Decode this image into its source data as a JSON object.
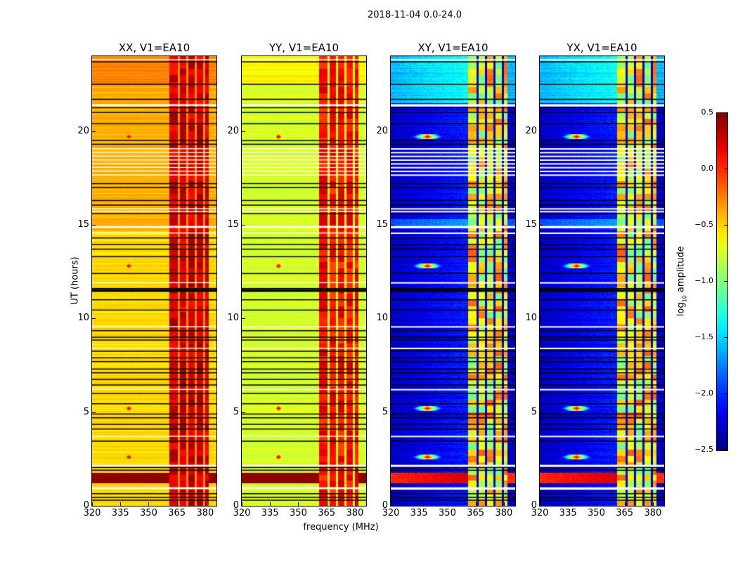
{
  "chart_data": {
    "type": "heatmap",
    "title": "2018-11-04 0.0-24.0",
    "xlabel": "frequency (MHz)",
    "ylabel": "UT (hours)",
    "xlim": [
      320,
      386
    ],
    "ylim": [
      0,
      24
    ],
    "xticks": [
      "320",
      "335",
      "350",
      "365",
      "380"
    ],
    "xtick_values": [
      320,
      335,
      350,
      365,
      380
    ],
    "yticks": [
      "0",
      "5",
      "10",
      "15",
      "20"
    ],
    "ytick_values": [
      0,
      5,
      10,
      15,
      20
    ],
    "panels": [
      {
        "title": "XX, V1=EA10",
        "pol": "XX",
        "base_level": -0.4,
        "rfi_level": 0.25
      },
      {
        "title": "YY, V1=EA10",
        "pol": "YY",
        "base_level": -0.75,
        "rfi_level": 0.1
      },
      {
        "title": "XY, V1=EA10",
        "pol": "XY",
        "base_level": -2.3,
        "rfi_level": -0.6
      },
      {
        "title": "YX, V1=EA10",
        "pol": "YX",
        "base_level": -2.3,
        "rfi_level": -0.6
      }
    ],
    "rfi_band_mhz": [
      361,
      382
    ],
    "rfi_band_gaps_mhz": [
      366,
      370.5,
      375,
      379.5
    ],
    "point_sources": {
      "freq_mhz": 339.5,
      "ut_hours": [
        19.7,
        12.8,
        5.2,
        2.6
      ]
    },
    "flagged_black_ut_hours": [
      23.7,
      22.5,
      21.7,
      21.25,
      21.0,
      20.4,
      19.5,
      19.3,
      17.2,
      17.0,
      16.3,
      16.05,
      15.6,
      14.3,
      13.95,
      13.7,
      13.3,
      12.4,
      11.45,
      11.5,
      11.55,
      11.6,
      11.0,
      10.45,
      9.35,
      9.0,
      8.85,
      8.25,
      7.9,
      7.7,
      7.3,
      7.1,
      6.75,
      6.45,
      6.0,
      5.45,
      4.9,
      4.7,
      4.35,
      4.1,
      3.45,
      2.05,
      1.9,
      0.65,
      0.45,
      0.3
    ],
    "flagged_white_ut_hours": [
      23.8,
      21.35,
      21.4,
      19.05,
      18.85,
      18.65,
      18.45,
      18.25,
      18.05,
      17.85,
      17.65,
      15.85,
      15.7,
      14.85,
      14.9,
      14.55,
      11.9,
      9.55,
      8.4,
      6.2,
      3.7,
      2.15,
      2.1,
      0.95,
      0.9
    ],
    "colorbar": {
      "label_main": "log",
      "label_sub": "10",
      "label_rest": " amplitude",
      "range": [
        -2.5,
        0.5
      ],
      "ticks": [
        "0.5",
        "0.0",
        "−0.5",
        "−1.0",
        "−1.5",
        "−2.0",
        "−2.5"
      ],
      "tick_values": [
        0.5,
        0.0,
        -0.5,
        -1.0,
        -1.5,
        -2.0,
        -2.5
      ],
      "colormap": "jet"
    }
  }
}
